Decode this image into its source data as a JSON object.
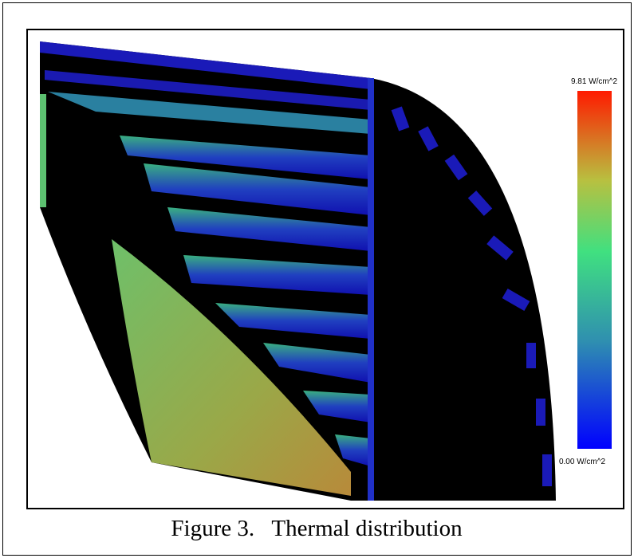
{
  "figure": {
    "colorbar": {
      "max_label": "9.81 W/cm^2",
      "min_label": "0.00 W/cm^2"
    },
    "caption": "Figure 3.   Thermal distribution"
  }
}
